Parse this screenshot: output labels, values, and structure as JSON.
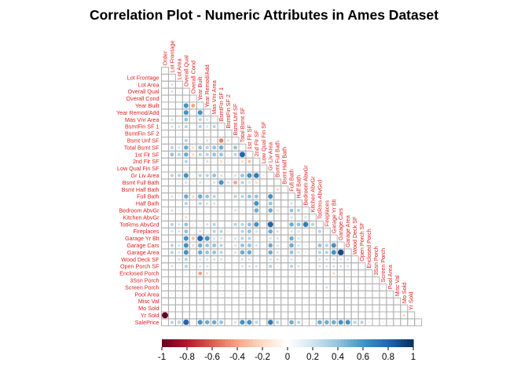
{
  "chart_data": {
    "type": "heatmap",
    "title": "Correlation Plot - Numeric Attributes in Ames Dataset",
    "method": "circle",
    "layout": "lower-triangle",
    "variables": [
      "Order",
      "Lot Frontage",
      "Lot Area",
      "Overall Qual",
      "Overall Cond",
      "Year Built",
      "Year Remod/Add",
      "Mas Vnr Area",
      "BsmtFin SF 1",
      "BsmtFin SF 2",
      "Bsmt Unf SF",
      "Total Bsmt SF",
      "1st Flr SF",
      "2nd Flr SF",
      "Low Qual Fin SF",
      "Gr Liv Area",
      "Bsmt Full Bath",
      "Bsmt Half Bath",
      "Full Bath",
      "Half Bath",
      "Bedroom AbvGr",
      "Kitchen AbvGr",
      "TotRms AbvGrd",
      "Fireplaces",
      "Garage Yr Blt",
      "Garage Cars",
      "Garage Area",
      "Wood Deck SF",
      "Open Porch SF",
      "Enclosed Porch",
      "3Ssn Porch",
      "Screen Porch",
      "Pool Area",
      "Misc Val",
      "Mo Sold",
      "Yr Sold",
      "SalePrice"
    ],
    "matrix": [
      [
        1.0
      ],
      [
        0.0,
        1.0
      ],
      [
        0.0,
        0.2,
        1.0
      ],
      [
        0.0,
        0.2,
        0.1,
        1.0
      ],
      [
        0.0,
        -0.1,
        0.0,
        -0.1,
        1.0
      ],
      [
        0.0,
        0.1,
        0.0,
        0.6,
        -0.4,
        1.0
      ],
      [
        0.0,
        0.1,
        0.0,
        0.6,
        0.0,
        0.6,
        1.0
      ],
      [
        0.0,
        0.2,
        0.1,
        0.4,
        -0.1,
        0.3,
        0.2,
        1.0
      ],
      [
        0.0,
        0.2,
        0.2,
        0.3,
        0.0,
        0.3,
        0.2,
        0.3,
        1.0
      ],
      [
        0.0,
        0.0,
        0.1,
        0.0,
        0.0,
        0.0,
        -0.1,
        0.0,
        0.0,
        1.0
      ],
      [
        0.0,
        0.1,
        0.0,
        0.3,
        -0.1,
        0.1,
        0.2,
        0.1,
        -0.5,
        -0.2,
        1.0
      ],
      [
        0.0,
        0.3,
        0.2,
        0.5,
        -0.2,
        0.4,
        0.3,
        0.4,
        0.5,
        0.1,
        0.4,
        1.0
      ],
      [
        0.0,
        0.4,
        0.3,
        0.5,
        -0.2,
        0.3,
        0.3,
        0.4,
        0.4,
        0.1,
        0.3,
        0.8,
        1.0
      ],
      [
        0.0,
        0.0,
        0.0,
        0.3,
        0.0,
        0.0,
        0.2,
        0.1,
        -0.2,
        -0.1,
        0.0,
        -0.2,
        -0.3,
        1.0
      ],
      [
        0.0,
        0.0,
        0.0,
        0.0,
        0.0,
        0.0,
        0.0,
        0.0,
        0.0,
        0.0,
        0.0,
        0.0,
        0.0,
        0.0,
        1.0
      ],
      [
        0.0,
        0.3,
        0.3,
        0.6,
        -0.1,
        0.3,
        0.3,
        0.4,
        0.2,
        0.0,
        0.2,
        0.4,
        0.6,
        0.7,
        0.1,
        1.0
      ],
      [
        0.0,
        0.1,
        0.1,
        0.2,
        -0.1,
        0.2,
        0.1,
        0.2,
        0.6,
        0.2,
        -0.4,
        0.3,
        0.2,
        -0.2,
        0.0,
        0.0,
        1.0
      ],
      [
        0.0,
        0.0,
        0.0,
        0.0,
        0.0,
        0.0,
        0.0,
        0.0,
        0.0,
        0.0,
        0.0,
        0.0,
        0.0,
        0.0,
        0.0,
        0.0,
        -0.2,
        1.0
      ],
      [
        0.0,
        0.2,
        0.1,
        0.5,
        -0.2,
        0.5,
        0.4,
        0.3,
        0.1,
        0.0,
        0.3,
        0.3,
        0.4,
        0.4,
        0.0,
        0.6,
        0.0,
        0.0,
        1.0
      ],
      [
        0.0,
        0.0,
        0.0,
        0.3,
        -0.1,
        0.3,
        0.2,
        0.2,
        0.0,
        0.0,
        0.0,
        0.0,
        0.0,
        0.6,
        0.0,
        0.4,
        0.0,
        0.0,
        0.2,
        1.0
      ],
      [
        0.0,
        0.2,
        0.1,
        0.1,
        0.0,
        0.0,
        0.0,
        0.1,
        -0.1,
        0.0,
        0.2,
        0.1,
        0.1,
        0.5,
        0.0,
        0.5,
        -0.2,
        0.0,
        0.4,
        0.3,
        1.0
      ],
      [
        0.0,
        0.0,
        0.0,
        -0.2,
        -0.1,
        -0.1,
        -0.1,
        0.0,
        0.0,
        0.0,
        0.0,
        0.0,
        0.0,
        0.0,
        0.0,
        0.1,
        0.0,
        0.0,
        0.2,
        0.0,
        0.2,
        1.0
      ],
      [
        0.0,
        0.3,
        0.2,
        0.4,
        -0.1,
        0.1,
        0.2,
        0.3,
        0.0,
        0.0,
        0.3,
        0.3,
        0.4,
        0.6,
        0.0,
        0.8,
        -0.1,
        0.0,
        0.5,
        0.4,
        0.7,
        0.3,
        1.0
      ],
      [
        0.0,
        0.2,
        0.2,
        0.4,
        0.0,
        0.2,
        0.1,
        0.3,
        0.3,
        0.1,
        0.0,
        0.3,
        0.4,
        0.2,
        0.0,
        0.5,
        0.2,
        0.0,
        0.2,
        0.2,
        0.1,
        -0.1,
        0.3,
        1.0
      ],
      [
        0.0,
        0.1,
        0.0,
        0.6,
        -0.3,
        0.8,
        0.6,
        0.2,
        0.2,
        0.0,
        0.2,
        0.3,
        0.3,
        0.0,
        0.0,
        0.2,
        0.2,
        0.0,
        0.5,
        0.2,
        0.0,
        -0.1,
        0.1,
        0.1,
        1.0
      ],
      [
        0.0,
        0.3,
        0.2,
        0.6,
        -0.2,
        0.5,
        0.4,
        0.4,
        0.3,
        0.0,
        0.2,
        0.4,
        0.4,
        0.2,
        0.0,
        0.5,
        0.2,
        0.0,
        0.5,
        0.2,
        0.1,
        0.0,
        0.4,
        0.3,
        0.6,
        1.0
      ],
      [
        0.0,
        0.3,
        0.2,
        0.6,
        -0.1,
        0.5,
        0.4,
        0.4,
        0.3,
        0.0,
        0.2,
        0.5,
        0.5,
        0.1,
        0.0,
        0.5,
        0.2,
        0.0,
        0.4,
        0.2,
        0.1,
        0.0,
        0.3,
        0.3,
        0.6,
        0.9,
        1.0
      ],
      [
        0.0,
        0.1,
        0.2,
        0.3,
        0.0,
        0.2,
        0.2,
        0.2,
        0.2,
        0.1,
        0.0,
        0.2,
        0.2,
        0.1,
        0.0,
        0.2,
        0.2,
        0.1,
        0.2,
        0.1,
        0.0,
        0.0,
        0.2,
        0.2,
        0.2,
        0.2,
        0.2,
        1.0
      ],
      [
        0.0,
        0.2,
        0.1,
        0.3,
        -0.1,
        0.2,
        0.2,
        0.1,
        0.1,
        0.0,
        0.1,
        0.2,
        0.2,
        0.2,
        0.0,
        0.3,
        0.1,
        0.0,
        0.3,
        0.2,
        0.1,
        0.0,
        0.2,
        0.2,
        0.2,
        0.2,
        0.2,
        0.0,
        1.0
      ],
      [
        0.0,
        0.0,
        0.0,
        -0.1,
        0.1,
        -0.4,
        -0.2,
        -0.1,
        -0.1,
        0.0,
        0.0,
        -0.1,
        0.0,
        0.1,
        0.1,
        0.0,
        0.0,
        0.0,
        -0.1,
        0.0,
        0.1,
        0.0,
        0.0,
        0.0,
        -0.2,
        -0.1,
        -0.1,
        -0.1,
        0.0,
        1.0
      ],
      [
        0.0,
        0.0,
        0.0,
        0.0,
        0.0,
        0.0,
        0.0,
        0.0,
        0.0,
        0.0,
        0.0,
        0.0,
        0.0,
        0.0,
        0.0,
        0.0,
        0.0,
        0.0,
        0.0,
        0.0,
        0.0,
        0.0,
        0.0,
        0.0,
        0.0,
        0.0,
        0.0,
        0.0,
        0.0,
        0.0,
        1.0
      ],
      [
        0.0,
        0.1,
        0.1,
        0.1,
        0.0,
        0.0,
        0.0,
        0.1,
        0.1,
        0.0,
        0.0,
        0.1,
        0.1,
        0.0,
        0.0,
        0.1,
        0.0,
        0.0,
        0.0,
        0.0,
        0.0,
        0.0,
        0.0,
        0.2,
        0.0,
        0.0,
        0.1,
        0.0,
        0.0,
        0.0,
        0.0,
        1.0
      ],
      [
        0.0,
        0.1,
        0.1,
        0.0,
        0.0,
        0.0,
        0.0,
        0.0,
        0.1,
        0.0,
        0.0,
        0.1,
        0.1,
        0.0,
        0.0,
        0.1,
        0.0,
        0.0,
        0.0,
        0.0,
        0.0,
        0.0,
        0.0,
        0.1,
        0.0,
        0.0,
        0.0,
        0.0,
        0.0,
        0.0,
        0.0,
        0.0,
        1.0
      ],
      [
        0.0,
        0.0,
        0.0,
        0.0,
        0.0,
        0.0,
        0.0,
        0.0,
        0.0,
        0.0,
        0.0,
        0.0,
        0.0,
        0.0,
        0.0,
        0.0,
        0.0,
        0.0,
        0.0,
        0.0,
        0.0,
        0.0,
        0.0,
        0.0,
        0.0,
        0.0,
        0.0,
        0.0,
        0.0,
        0.0,
        0.0,
        0.0,
        0.0,
        1.0
      ],
      [
        0.0,
        0.0,
        0.0,
        0.0,
        0.0,
        0.0,
        0.0,
        0.0,
        0.0,
        0.0,
        0.0,
        0.0,
        0.0,
        0.0,
        0.0,
        0.0,
        0.0,
        0.0,
        0.0,
        0.0,
        0.0,
        0.0,
        0.0,
        0.0,
        0.0,
        0.0,
        0.0,
        0.0,
        0.0,
        0.0,
        0.0,
        0.0,
        0.0,
        0.0,
        1.0
      ],
      [
        -1.0,
        0.0,
        0.0,
        0.0,
        0.0,
        0.0,
        0.0,
        0.0,
        0.0,
        0.0,
        0.0,
        0.0,
        0.0,
        0.0,
        0.0,
        0.0,
        0.0,
        0.0,
        0.0,
        0.0,
        0.0,
        0.0,
        0.0,
        0.0,
        0.0,
        0.0,
        0.0,
        0.0,
        0.0,
        0.0,
        0.0,
        0.0,
        0.0,
        0.0,
        -0.2,
        1.0
      ],
      [
        0.0,
        0.3,
        0.3,
        0.8,
        -0.1,
        0.6,
        0.5,
        0.5,
        0.4,
        0.0,
        0.2,
        0.6,
        0.6,
        0.3,
        0.0,
        0.7,
        0.3,
        0.0,
        0.5,
        0.3,
        0.1,
        -0.1,
        0.5,
        0.5,
        0.5,
        0.6,
        0.6,
        0.3,
        0.3,
        -0.1,
        0.0,
        0.1,
        0.1,
        0.0,
        0.0,
        0.0,
        1.0
      ]
    ],
    "colorbar": {
      "range": [
        -1,
        1
      ],
      "tick_labels": [
        "-1",
        "-0.8",
        "-0.6",
        "-0.4",
        "-0.2",
        "0",
        "0.2",
        "0.4",
        "0.6",
        "0.8",
        "1"
      ],
      "colors": [
        "#67001f",
        "#b2182b",
        "#d6604d",
        "#f4a582",
        "#fddbc7",
        "#ffffff",
        "#d1e5f0",
        "#92c5de",
        "#4393c3",
        "#2166ac",
        "#053061"
      ]
    },
    "label_color": "#e02020",
    "grid_color": "#b0b0b0"
  }
}
